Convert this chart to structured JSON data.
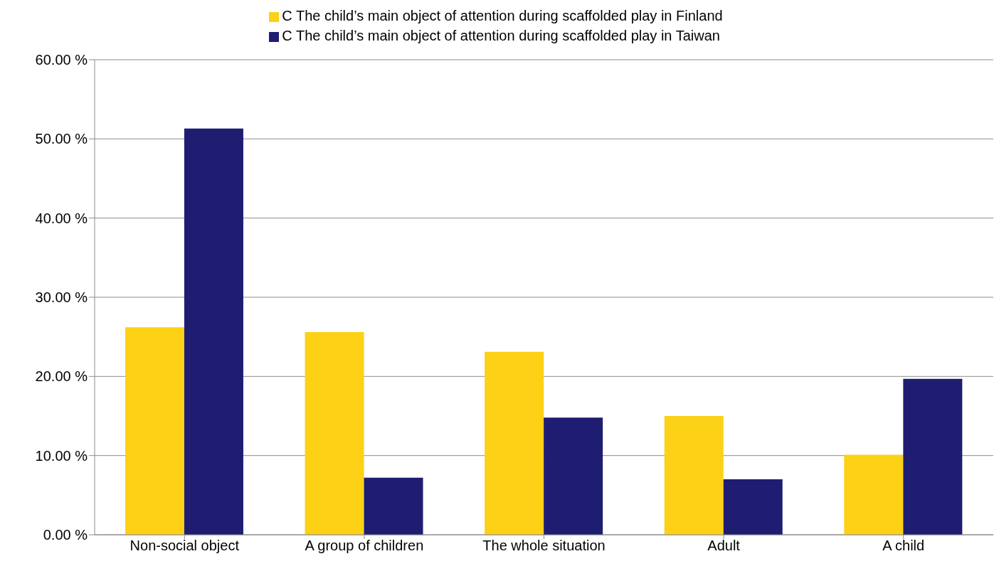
{
  "chart_data": {
    "type": "bar",
    "categories": [
      "Non-social object",
      "A group of children",
      "The whole situation",
      "Adult",
      "A child"
    ],
    "series": [
      {
        "name": "C The child’s main object of attention during scaffolded play in Finland",
        "color": "#fcd116",
        "values": [
          26.2,
          25.6,
          23.1,
          15.0,
          10.1
        ]
      },
      {
        "name": "C The child’s main object of attention during scaffolded play in Taiwan",
        "color": "#1f1d72",
        "values": [
          51.3,
          7.2,
          14.8,
          7.0,
          19.7
        ]
      }
    ],
    "ylim": [
      0,
      60
    ],
    "yticks": [
      {
        "value": 0,
        "label": "0.00 %"
      },
      {
        "value": 10,
        "label": "10.00 %"
      },
      {
        "value": 20,
        "label": "20.00 %"
      },
      {
        "value": 30,
        "label": "30.00 %"
      },
      {
        "value": 40,
        "label": "40.00 %"
      },
      {
        "value": 50,
        "label": "50.00 %"
      },
      {
        "value": 60,
        "label": "60.00 %"
      }
    ],
    "grid": "y",
    "legend": "top"
  }
}
